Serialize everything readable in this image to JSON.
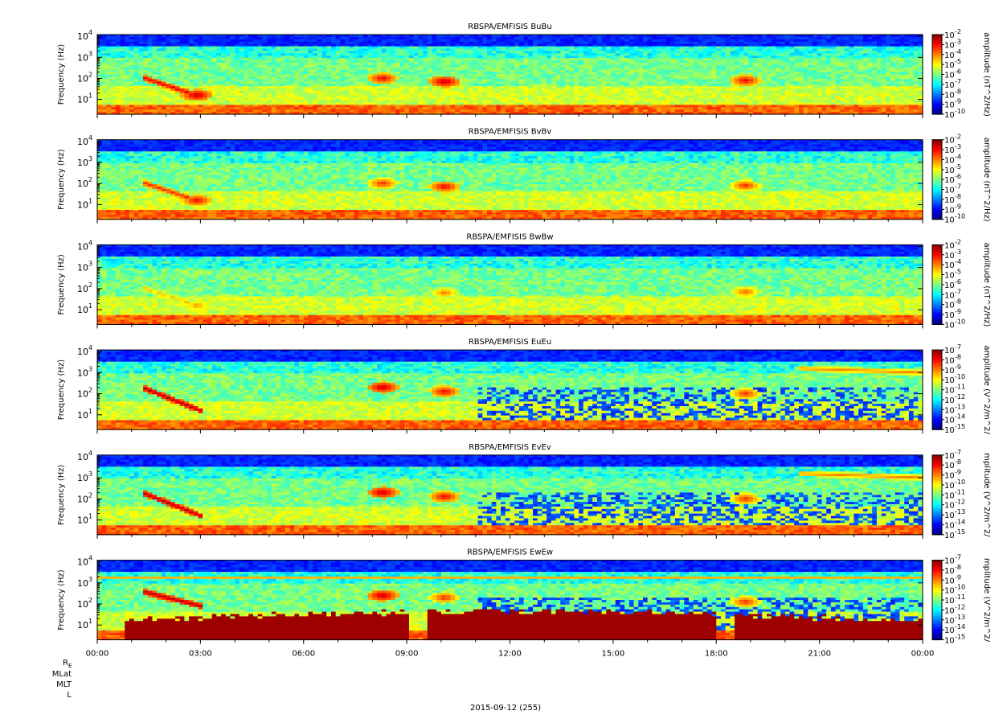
{
  "chart_data": [
    {
      "type": "heatmap",
      "title": "RBSPA/EMFISIS  BuBu",
      "ylabel": "Frequency (Hz)",
      "y_scale": "log",
      "yticks": [
        "10",
        "10",
        "10",
        "10"
      ],
      "ytick_exponents": [
        "1",
        "2",
        "3",
        "4"
      ],
      "ylim": [
        2,
        12000
      ],
      "colorbar": {
        "label": "amplitude (nT^2/Hz)",
        "scale": "log",
        "tick_base": "10",
        "tick_exponents": [
          "-2",
          "-3",
          "-4",
          "-5",
          "-6",
          "-7",
          "-8",
          "-9",
          "-10"
        ],
        "range": [
          -10,
          -2
        ]
      },
      "features": [
        {
          "kind": "line_band",
          "from_hour": 1.4,
          "to_hour": 2.7,
          "log_f_start": 2.0,
          "log_f_end": 1.3,
          "level": 0.9
        },
        {
          "kind": "blob",
          "hour": 2.9,
          "log_f": 1.2,
          "level": 0.95
        },
        {
          "kind": "blob",
          "hour": 8.3,
          "log_f": 2.0,
          "level": 0.9
        },
        {
          "kind": "blob",
          "hour": 10.1,
          "log_f": 1.85,
          "level": 0.95
        },
        {
          "kind": "blob",
          "hour": 18.85,
          "log_f": 1.9,
          "level": 0.9
        }
      ]
    },
    {
      "type": "heatmap",
      "title": "RBSPA/EMFISIS  BvBv",
      "ylabel": "Frequency (Hz)",
      "y_scale": "log",
      "yticks": [
        "10",
        "10",
        "10",
        "10"
      ],
      "ytick_exponents": [
        "1",
        "2",
        "3",
        "4"
      ],
      "ylim": [
        2,
        12000
      ],
      "colorbar": {
        "label": "amplitude (nT^2/Hz)",
        "scale": "log",
        "tick_base": "10",
        "tick_exponents": [
          "-2",
          "-3",
          "-4",
          "-5",
          "-6",
          "-7",
          "-8",
          "-9",
          "-10"
        ],
        "range": [
          -10,
          -2
        ]
      },
      "features": [
        {
          "kind": "line_band",
          "from_hour": 1.4,
          "to_hour": 2.7,
          "log_f_start": 2.0,
          "log_f_end": 1.3,
          "level": 0.85
        },
        {
          "kind": "blob",
          "hour": 2.9,
          "log_f": 1.2,
          "level": 0.9
        },
        {
          "kind": "blob",
          "hour": 8.3,
          "log_f": 2.0,
          "level": 0.85
        },
        {
          "kind": "blob",
          "hour": 10.1,
          "log_f": 1.85,
          "level": 0.9
        },
        {
          "kind": "blob",
          "hour": 18.85,
          "log_f": 1.9,
          "level": 0.85
        }
      ]
    },
    {
      "type": "heatmap",
      "title": "RBSPA/EMFISIS  BwBw",
      "ylabel": "Frequency (Hz)",
      "y_scale": "log",
      "yticks": [
        "10",
        "10",
        "10",
        "10"
      ],
      "ytick_exponents": [
        "1",
        "2",
        "3",
        "4"
      ],
      "ylim": [
        2,
        12000
      ],
      "colorbar": {
        "label": "amplitude (nT^2/Hz)",
        "scale": "log",
        "tick_base": "10",
        "tick_exponents": [
          "-2",
          "-3",
          "-4",
          "-5",
          "-6",
          "-7",
          "-8",
          "-9",
          "-10"
        ],
        "range": [
          -10,
          -2
        ]
      },
      "features": [
        {
          "kind": "line_band",
          "from_hour": 1.4,
          "to_hour": 2.7,
          "log_f_start": 2.0,
          "log_f_end": 1.3,
          "level": 0.7
        },
        {
          "kind": "blob",
          "hour": 2.9,
          "log_f": 1.2,
          "level": 0.75
        },
        {
          "kind": "blob",
          "hour": 10.1,
          "log_f": 1.8,
          "level": 0.78
        },
        {
          "kind": "blob",
          "hour": 18.85,
          "log_f": 1.85,
          "level": 0.8
        }
      ]
    },
    {
      "type": "heatmap",
      "title": "RBSPA/EMFISIS  EuEu",
      "ylabel": "Frequency (Hz)",
      "y_scale": "log",
      "yticks": [
        "10",
        "10",
        "10",
        "10"
      ],
      "ytick_exponents": [
        "1",
        "2",
        "3",
        "4"
      ],
      "ylim": [
        2,
        12000
      ],
      "colorbar": {
        "label": "amplitude (V^2/m^2/",
        "scale": "log",
        "tick_base": "10",
        "tick_exponents": [
          "-7",
          "-8",
          "-9",
          "-10",
          "-11",
          "-12",
          "-13",
          "-14",
          "-15"
        ],
        "range": [
          -15,
          -7
        ]
      },
      "features": [
        {
          "kind": "line_band",
          "from_hour": 1.3,
          "to_hour": 3.0,
          "log_f_start": 2.3,
          "log_f_end": 1.2,
          "level": 0.95
        },
        {
          "kind": "blob",
          "hour": 8.3,
          "log_f": 2.3,
          "level": 0.95
        },
        {
          "kind": "blob",
          "hour": 10.1,
          "log_f": 2.1,
          "level": 0.9
        },
        {
          "kind": "blob",
          "hour": 18.85,
          "log_f": 2.0,
          "level": 0.85
        },
        {
          "kind": "line_band",
          "from_hour": 20.4,
          "to_hour": 24.0,
          "log_f_start": 3.2,
          "log_f_end": 3.0,
          "level": 0.75
        }
      ]
    },
    {
      "type": "heatmap",
      "title": "RBSPA/EMFISIS  EvEv",
      "ylabel": "Frequency (Hz)",
      "y_scale": "log",
      "yticks": [
        "10",
        "10",
        "10",
        "10"
      ],
      "ytick_exponents": [
        "1",
        "2",
        "3",
        "4"
      ],
      "ylim": [
        2,
        12000
      ],
      "colorbar": {
        "label": "mplitude (V^2/m^2/",
        "scale": "log",
        "tick_base": "10",
        "tick_exponents": [
          "-7",
          "-8",
          "-9",
          "-10",
          "-11",
          "-12",
          "-13",
          "-14",
          "-15"
        ],
        "range": [
          -15,
          -7
        ]
      },
      "features": [
        {
          "kind": "line_band",
          "from_hour": 1.3,
          "to_hour": 3.0,
          "log_f_start": 2.3,
          "log_f_end": 1.2,
          "level": 0.95
        },
        {
          "kind": "blob",
          "hour": 8.3,
          "log_f": 2.3,
          "level": 0.95
        },
        {
          "kind": "blob",
          "hour": 10.1,
          "log_f": 2.1,
          "level": 0.9
        },
        {
          "kind": "blob",
          "hour": 18.85,
          "log_f": 2.0,
          "level": 0.85
        },
        {
          "kind": "line_band",
          "from_hour": 20.4,
          "to_hour": 24.0,
          "log_f_start": 3.2,
          "log_f_end": 3.0,
          "level": 0.75
        }
      ]
    },
    {
      "type": "heatmap",
      "title": "RBSPA/EMFISIS  EwEw",
      "ylabel": "Frequency (Hz)",
      "y_scale": "log",
      "yticks": [
        "10",
        "10",
        "10",
        "10"
      ],
      "ytick_exponents": [
        "1",
        "2",
        "3",
        "4"
      ],
      "ylim": [
        2,
        12000
      ],
      "colorbar": {
        "label": "mplitude (V^2/m^2/",
        "scale": "log",
        "tick_base": "10",
        "tick_exponents": [
          "-7",
          "-8",
          "-9",
          "-10",
          "-11",
          "-12",
          "-13",
          "-14",
          "-15"
        ],
        "range": [
          -15,
          -7
        ]
      },
      "features": [
        {
          "kind": "line_band",
          "from_hour": 1.3,
          "to_hour": 3.0,
          "log_f_start": 2.6,
          "log_f_end": 1.9,
          "level": 0.95
        },
        {
          "kind": "blob",
          "hour": 8.3,
          "log_f": 2.4,
          "level": 0.95
        },
        {
          "kind": "blob",
          "hour": 10.1,
          "log_f": 2.3,
          "level": 0.85
        },
        {
          "kind": "blob",
          "hour": 18.85,
          "log_f": 2.1,
          "level": 0.85
        }
      ]
    }
  ],
  "xaxis": {
    "ticks": [
      "00:00",
      "03:00",
      "06:00",
      "09:00",
      "12:00",
      "15:00",
      "18:00",
      "21:00",
      "00:00"
    ],
    "range_hours": [
      0,
      24
    ]
  },
  "ephemeris_labels": {
    "re_base": "R",
    "re_sub": "E",
    "mlat": "MLat",
    "mlt": "MLT",
    "l": "L"
  },
  "date_label": "2015-09-12 (255)"
}
